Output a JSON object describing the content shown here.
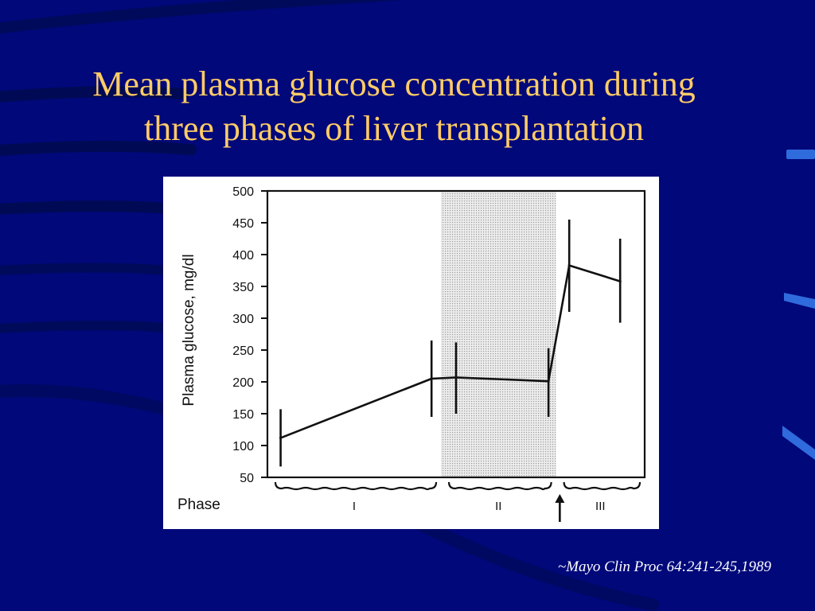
{
  "slide": {
    "title_line1": "Mean plasma glucose concentration during",
    "title_line2": "three phases of liver transplantation",
    "citation": "~Mayo Clin Proc 64:241-245,1989"
  },
  "colors": {
    "background": "#00087a",
    "title": "#ffcc66",
    "citation": "#ffffff",
    "chart_ink": "#111111",
    "phase_shading": "#d6d6d6"
  },
  "chart_data": {
    "type": "line",
    "title": "",
    "xlabel": "Phase",
    "ylabel": "Plasma glucose, mg/dl",
    "ylim": [
      50,
      500
    ],
    "yticks": [
      500,
      450,
      400,
      350,
      300,
      250,
      200,
      150,
      100,
      50
    ],
    "grid": false,
    "legend": "none",
    "x_domain": [
      0,
      10
    ],
    "series": [
      {
        "points": [
          {
            "x": 0.35,
            "y": 112,
            "err_low": 67,
            "err_high": 157
          },
          {
            "x": 4.35,
            "y": 205,
            "err_low": 145,
            "err_high": 265
          },
          {
            "x": 5.0,
            "y": 207,
            "err_low": 150,
            "err_high": 262
          },
          {
            "x": 7.45,
            "y": 201,
            "err_low": 145,
            "err_high": 253
          },
          {
            "x": 8.0,
            "y": 383,
            "err_low": 310,
            "err_high": 455
          },
          {
            "x": 9.35,
            "y": 358,
            "err_low": 293,
            "err_high": 425
          }
        ]
      }
    ],
    "phases": [
      {
        "label": "I",
        "x_start": 0,
        "x_end": 4.6,
        "shaded": false
      },
      {
        "label": "II",
        "x_start": 4.6,
        "x_end": 7.65,
        "shaded": true
      },
      {
        "label": "III",
        "x_start": 7.65,
        "x_end": 10,
        "shaded": false
      }
    ],
    "marker_arrow_x": 7.75
  }
}
